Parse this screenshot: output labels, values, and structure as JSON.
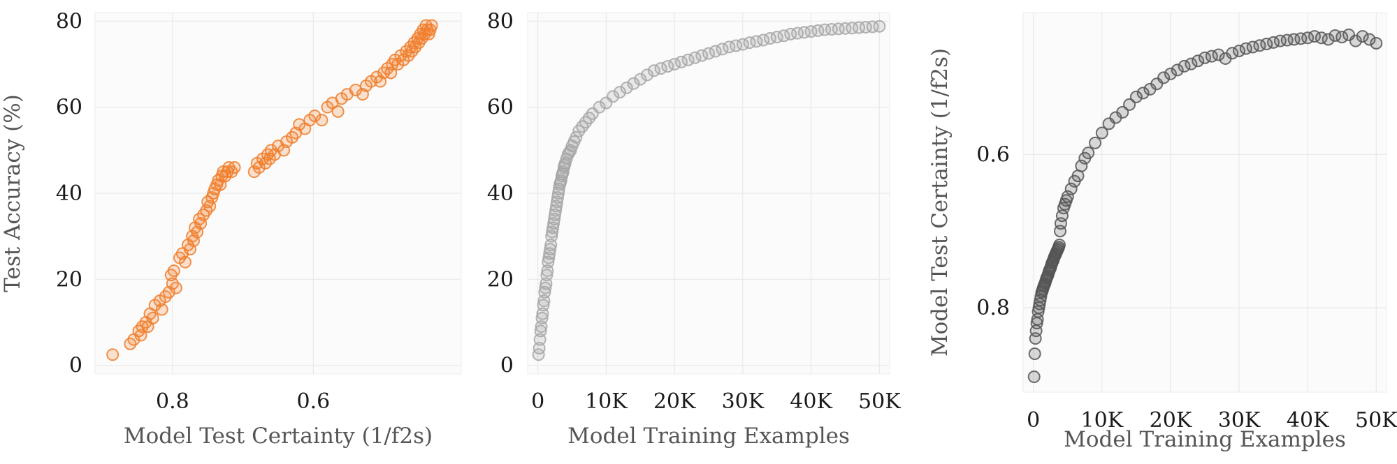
{
  "chart_data": [
    {
      "type": "scatter",
      "title": "",
      "xlabel": "Model Test Certainty (1/f2s)",
      "ylabel": "Test Accuracy (%)",
      "x_reversed": true,
      "xlim": [
        0.91,
        0.39
      ],
      "ylim": [
        -2,
        82
      ],
      "xticks": [
        0.8,
        0.6
      ],
      "xtick_labels": [
        "0.8",
        "0.6"
      ],
      "yticks": [
        0,
        20,
        40,
        60,
        80
      ],
      "ytick_labels": [
        "0",
        "20",
        "40",
        "60",
        "80"
      ],
      "grid": true,
      "marker_color": "#f07e2c",
      "marker": "hollow-circle",
      "series": [
        {
          "x": [
            0.885,
            0.86,
            0.855,
            0.848,
            0.845,
            0.843,
            0.838,
            0.835,
            0.832,
            0.828,
            0.825,
            0.818,
            0.815,
            0.81,
            0.805,
            0.802,
            0.8,
            0.798,
            0.795,
            0.79,
            0.786,
            0.782,
            0.778,
            0.775,
            0.772,
            0.77,
            0.768,
            0.765,
            0.762,
            0.76,
            0.756,
            0.752,
            0.75,
            0.747,
            0.744,
            0.742,
            0.74,
            0.737,
            0.735,
            0.732,
            0.73,
            0.728,
            0.725,
            0.722,
            0.72,
            0.716,
            0.712,
            0.684,
            0.68,
            0.677,
            0.672,
            0.668,
            0.665,
            0.662,
            0.66,
            0.655,
            0.65,
            0.642,
            0.638,
            0.63,
            0.625,
            0.62,
            0.612,
            0.605,
            0.598,
            0.588,
            0.58,
            0.573,
            0.565,
            0.56,
            0.552,
            0.54,
            0.53,
            0.525,
            0.518,
            0.51,
            0.505,
            0.5,
            0.495,
            0.49,
            0.488,
            0.484,
            0.48,
            0.476,
            0.472,
            0.468,
            0.465,
            0.462,
            0.46,
            0.457,
            0.455,
            0.452,
            0.45,
            0.448,
            0.446,
            0.444,
            0.442,
            0.44,
            0.438,
            0.436,
            0.434,
            0.432
          ],
          "y": [
            2.5,
            5,
            6,
            8,
            7,
            9,
            10,
            9,
            12,
            11,
            14,
            15,
            13,
            16,
            17,
            21,
            19,
            22,
            18,
            25,
            26,
            24,
            28,
            27,
            30,
            29,
            32,
            31,
            34,
            33,
            35,
            36,
            38,
            37,
            39,
            40,
            41,
            42,
            43,
            42,
            44,
            45,
            44,
            45,
            46,
            45,
            46,
            45,
            47,
            46,
            48,
            47,
            49,
            48,
            50,
            49,
            51,
            50,
            52,
            53,
            54,
            56,
            55,
            57,
            58,
            57,
            60,
            61,
            59,
            62,
            63,
            64,
            63,
            65,
            66,
            67,
            66,
            68,
            69,
            68,
            70,
            71,
            70,
            72,
            71,
            73,
            72,
            74,
            73,
            75,
            74,
            76,
            75,
            77,
            76,
            78,
            77,
            79,
            78,
            77,
            78,
            79
          ]
        }
      ]
    },
    {
      "type": "scatter",
      "title": "",
      "xlabel": "Model Training Examples",
      "ylabel": "",
      "xlim": [
        -1500,
        51500
      ],
      "ylim": [
        -2,
        82
      ],
      "xticks": [
        0,
        10000,
        20000,
        30000,
        40000,
        50000
      ],
      "xtick_labels": [
        "0",
        "10K",
        "20K",
        "30K",
        "40K",
        "50K"
      ],
      "yticks": [
        0,
        20,
        40,
        60,
        80
      ],
      "ytick_labels": [
        "0",
        "20",
        "40",
        "60",
        "80"
      ],
      "grid": true,
      "marker_color": "#a6a6a6",
      "marker": "hollow-circle",
      "series": [
        {
          "x": [
            100,
            200,
            300,
            400,
            500,
            600,
            700,
            800,
            900,
            1000,
            1100,
            1200,
            1300,
            1400,
            1500,
            1600,
            1700,
            1800,
            1900,
            2000,
            2100,
            2200,
            2300,
            2400,
            2500,
            2600,
            2700,
            2800,
            2900,
            3000,
            3100,
            3200,
            3300,
            3400,
            3500,
            3600,
            3700,
            3800,
            3900,
            4000,
            4200,
            4400,
            4600,
            4800,
            5000,
            5300,
            5600,
            6000,
            6500,
            7000,
            7500,
            8000,
            9000,
            10000,
            11000,
            12000,
            13000,
            14000,
            15000,
            16000,
            17000,
            18000,
            19000,
            20000,
            21000,
            22000,
            23000,
            24000,
            25000,
            26000,
            27000,
            28000,
            29000,
            30000,
            31000,
            32000,
            33000,
            34000,
            35000,
            36000,
            37000,
            38000,
            39000,
            40000,
            41000,
            42000,
            43000,
            44000,
            45000,
            46000,
            47000,
            48000,
            49000,
            50000
          ],
          "y": [
            2.5,
            4,
            6,
            8,
            9,
            11,
            12,
            14,
            15,
            17,
            18,
            19,
            21,
            22,
            24,
            25,
            26,
            27,
            28,
            30,
            31,
            32,
            33,
            34,
            35,
            36,
            37,
            38,
            39,
            40,
            41,
            42,
            42.5,
            43,
            44,
            44.5,
            45,
            46,
            46.5,
            47,
            48,
            49,
            49.5,
            50,
            51,
            52,
            53,
            54.5,
            55.5,
            56.5,
            57.5,
            58.5,
            60,
            61,
            62.5,
            63.5,
            64.5,
            65.5,
            66.5,
            67.5,
            68.5,
            69,
            69.5,
            70,
            70.5,
            71,
            71.5,
            72,
            72.5,
            73,
            73.5,
            74,
            74.3,
            74.6,
            75,
            75.3,
            75.6,
            76,
            76.3,
            76.6,
            77,
            77.2,
            77.4,
            77.6,
            77.8,
            78,
            78.1,
            78.2,
            78.3,
            78.4,
            78.5,
            78.6,
            78.7,
            78.8
          ]
        }
      ]
    },
    {
      "type": "scatter",
      "title": "",
      "xlabel": "Model Training Examples",
      "ylabel": "Model Test Certainty (1/f2s)",
      "y_reversed": true,
      "xlim": [
        -1500,
        51500
      ],
      "ylim": [
        0.91,
        0.415
      ],
      "xticks": [
        0,
        10000,
        20000,
        30000,
        40000,
        50000
      ],
      "xtick_labels": [
        "0",
        "10K",
        "20K",
        "30K",
        "40K",
        "50K"
      ],
      "yticks": [
        0.8,
        0.6
      ],
      "ytick_labels": [
        "0.8",
        "0.6"
      ],
      "grid": true,
      "marker_color": "#555555",
      "marker": "hollow-circle",
      "series": [
        {
          "x": [
            100,
            200,
            300,
            400,
            500,
            600,
            700,
            800,
            900,
            1000,
            1100,
            1200,
            1300,
            1400,
            1500,
            1600,
            1700,
            1800,
            1900,
            2000,
            2100,
            2200,
            2300,
            2400,
            2500,
            2600,
            2700,
            2800,
            2900,
            3000,
            3100,
            3200,
            3300,
            3400,
            3500,
            3600,
            3700,
            3800,
            3900,
            4000,
            4200,
            4400,
            4600,
            4800,
            5000,
            5500,
            6000,
            6500,
            7000,
            7500,
            8000,
            9000,
            10000,
            11000,
            12000,
            13000,
            14000,
            15000,
            16000,
            17000,
            18000,
            19000,
            20000,
            21000,
            22000,
            23000,
            24000,
            25000,
            26000,
            27000,
            28000,
            29000,
            30000,
            31000,
            32000,
            33000,
            34000,
            35000,
            36000,
            37000,
            38000,
            39000,
            40000,
            41000,
            42000,
            43000,
            44000,
            45000,
            46000,
            47000,
            48000,
            49000,
            50000
          ],
          "y": [
            0.89,
            0.86,
            0.84,
            0.83,
            0.82,
            0.815,
            0.805,
            0.8,
            0.795,
            0.79,
            0.785,
            0.78,
            0.778,
            0.775,
            0.772,
            0.77,
            0.768,
            0.765,
            0.762,
            0.76,
            0.758,
            0.755,
            0.752,
            0.75,
            0.748,
            0.745,
            0.742,
            0.74,
            0.738,
            0.735,
            0.733,
            0.731,
            0.729,
            0.727,
            0.725,
            0.723,
            0.721,
            0.718,
            0.7,
            0.69,
            0.68,
            0.67,
            0.665,
            0.66,
            0.655,
            0.645,
            0.635,
            0.628,
            0.615,
            0.605,
            0.598,
            0.585,
            0.572,
            0.56,
            0.552,
            0.545,
            0.535,
            0.525,
            0.52,
            0.515,
            0.508,
            0.5,
            0.495,
            0.49,
            0.485,
            0.482,
            0.478,
            0.474,
            0.472,
            0.47,
            0.475,
            0.468,
            0.465,
            0.462,
            0.46,
            0.458,
            0.456,
            0.454,
            0.452,
            0.451,
            0.45,
            0.449,
            0.448,
            0.446,
            0.448,
            0.45,
            0.445,
            0.447,
            0.444,
            0.452,
            0.446,
            0.45,
            0.455
          ]
        }
      ]
    }
  ]
}
